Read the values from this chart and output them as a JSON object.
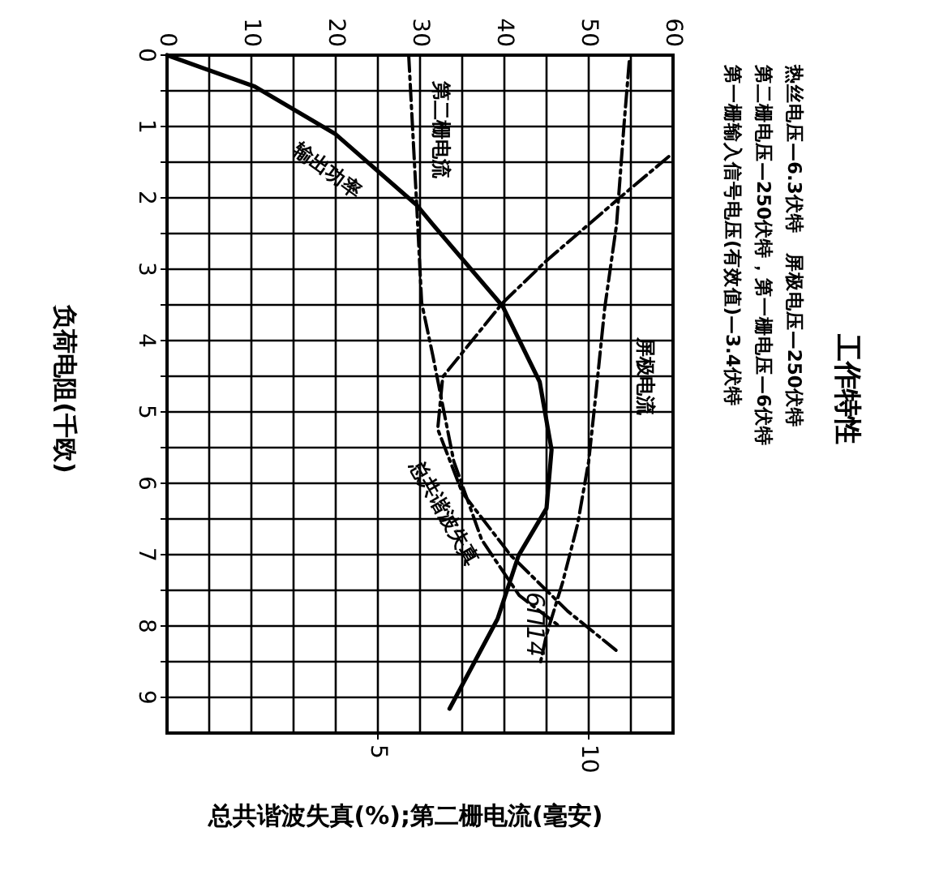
{
  "chart_data": {
    "type": "line",
    "title": "工作特性",
    "subtitle": "热丝电压—6.3伏特　屏极电压—250伏特",
    "ylabel": "负荷电阻(千欧)",
    "xlabel": "总共谐波失真(%);第二栅电流(毫安)",
    "annotations": [
      "第二栅电压—250伏特，第一栅电压—6伏特",
      "第一栅输入信号电压(有效值)—3.4伏特",
      "6П14"
    ],
    "ylim": [
      9.5,
      0
    ],
    "yticks": [
      0,
      {
        "value": 0.5,
        "label": null
      },
      1,
      {
        "value": 1.5,
        "label": null
      },
      2,
      {
        "value": 2.5,
        "label": null
      },
      3,
      {
        "value": 3.5,
        "label": null
      },
      4,
      {
        "value": 4.5,
        "label": null
      },
      5,
      {
        "value": 5.5,
        "label": null
      },
      6,
      {
        "value": 6.5,
        "label": null
      },
      7,
      {
        "value": 7.5,
        "label": null
      },
      8,
      {
        "value": 8.5,
        "label": null
      },
      9
    ],
    "x2lim": [
      0,
      60
    ],
    "x2ticks": [
      0,
      {
        "value": 5,
        "label": null
      },
      10,
      {
        "value": 15,
        "label": null
      },
      20,
      {
        "value": 25,
        "label": null
      },
      30,
      {
        "value": 35,
        "label": null
      },
      40,
      {
        "value": 45,
        "label": null
      },
      50,
      {
        "value": 55,
        "label": null
      },
      60
    ],
    "xlim": [
      0,
      12
    ],
    "xticks": [
      5,
      10
    ],
    "grid": true,
    "marker": "none",
    "series": [
      {
        "name": "输出功率",
        "color": "#000000",
        "line_style": "solid",
        "axis": "x2",
        "x": [
          0,
          10.4,
          20,
          29.6,
          31.5,
          39.8,
          44.2,
          45.6,
          45,
          41.7,
          39.2,
          33.5
        ],
        "values": [
          0,
          0.44,
          1.11,
          2.1,
          2.37,
          3.52,
          4.58,
          5.53,
          6.35,
          7.01,
          7.9,
          9.16
        ]
      },
      {
        "name": "第二栅电流",
        "color": "#000000",
        "line_style": "dashdot",
        "x": [
          5.73,
          5.92,
          6.04,
          6.3,
          6.8,
          7.46,
          8.35,
          9.3
        ],
        "values": [
          0,
          2.08,
          3.47,
          4.2,
          5.69,
          6.79,
          7.57,
          8.0
        ]
      },
      {
        "name": "屏极电流",
        "color": "#000000",
        "line_style": "dashdot",
        "axis": "x2",
        "x": [
          54.8,
          54.2,
          53.3,
          51.9,
          50.8,
          50,
          48.7,
          46.9,
          45,
          44.2
        ],
        "values": [
          0.09,
          0.97,
          2.37,
          3.54,
          4.8,
          5.69,
          6.57,
          7.39,
          8.12,
          8.56
        ]
      },
      {
        "name": "总共谐波失真",
        "color": "#000000",
        "line_style": "dashdot",
        "x": [
          11.9,
          10.65,
          9.0,
          7.96,
          6.54,
          6.42,
          7.0,
          8.15,
          9.5,
          10.65
        ],
        "values": [
          1.42,
          2.04,
          2.88,
          3.47,
          4.51,
          5.24,
          6.13,
          7.01,
          7.79,
          8.34
        ]
      }
    ]
  }
}
